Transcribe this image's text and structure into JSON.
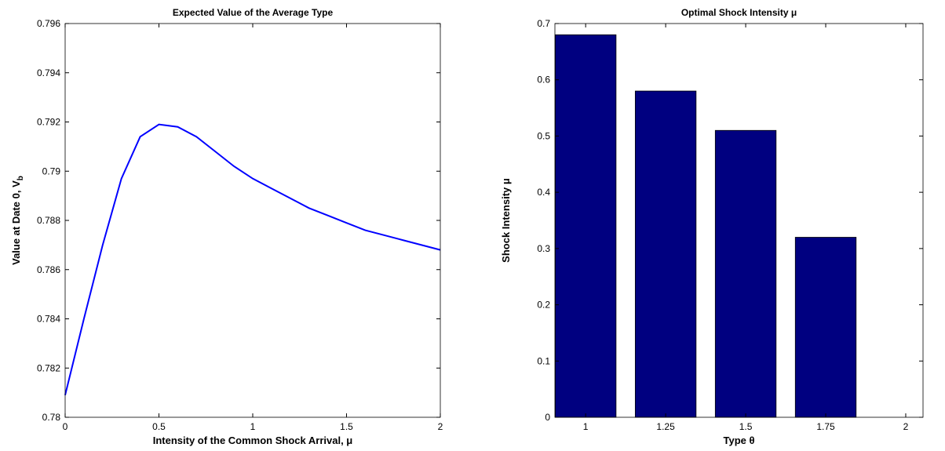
{
  "chart_data": [
    {
      "type": "line",
      "title": "Expected Value of the Average Type",
      "xlabel": "Intensity of the Common Shock Arrival, μ",
      "ylabel": "Value at Date 0, V",
      "ylabel_subscript": "b",
      "x": [
        0,
        0.1,
        0.2,
        0.3,
        0.4,
        0.5,
        0.6,
        0.7,
        0.8,
        0.9,
        1,
        1.1,
        1.2,
        1.3,
        1.4,
        1.5,
        1.6,
        1.7,
        1.8,
        1.9,
        2
      ],
      "series": [
        {
          "color": "#0000ff",
          "values": [
            0.7809,
            0.784,
            0.787,
            0.7897,
            0.7914,
            0.7919,
            0.7918,
            0.7914,
            0.7908,
            0.7902,
            0.7897,
            0.7893,
            0.7889,
            0.7885,
            0.7882,
            0.7879,
            0.7876,
            0.7874,
            0.7872,
            0.787,
            0.7868
          ]
        }
      ],
      "xlim": [
        0,
        2
      ],
      "xticks": [
        0,
        0.5,
        1,
        1.5,
        2
      ],
      "ylim": [
        0.78,
        0.796
      ],
      "yticks": [
        0.78,
        0.782,
        0.784,
        0.786,
        0.788,
        0.79,
        0.792,
        0.794,
        0.796
      ]
    },
    {
      "type": "bar",
      "title": "Optimal Shock Intensity μ",
      "xlabel": "Type  θ",
      "ylabel": "Shock Intensity  μ",
      "x": [
        1,
        1.25,
        1.5,
        1.75,
        2
      ],
      "values": [
        0.68,
        0.58,
        0.51,
        0.32,
        0
      ],
      "color": "#000080",
      "xlim": [
        0.904,
        2.054
      ],
      "xticks": [
        1,
        1.25,
        1.5,
        1.75,
        2
      ],
      "ylim": [
        0,
        0.7
      ],
      "yticks": [
        0,
        0.1,
        0.2,
        0.3,
        0.4,
        0.5,
        0.6,
        0.7
      ]
    }
  ]
}
